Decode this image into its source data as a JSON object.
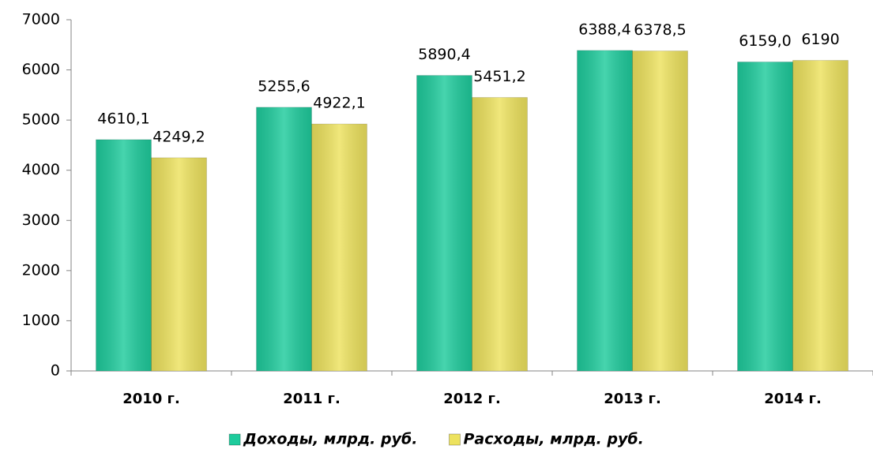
{
  "chart_data": {
    "type": "bar",
    "categories": [
      "2010 г.",
      "2011 г.",
      "2012 г.",
      "2013 г.",
      "2014 г."
    ],
    "series": [
      {
        "name": "Доходы, млрд. руб.",
        "color": "#1ecb9c",
        "values": [
          4610.1,
          5255.6,
          5890.4,
          6388.4,
          6159.0
        ],
        "value_labels": [
          "4610,1",
          "5255,6",
          "5890,4",
          "6388,4",
          "6159,0"
        ]
      },
      {
        "name": "Расходы, млрд. руб.",
        "color": "#ede25e",
        "values": [
          4249.2,
          4922.1,
          5451.2,
          6378.5,
          6190
        ],
        "value_labels": [
          "4249,2",
          "4922,1",
          "5451,2",
          "6378,5",
          "6190"
        ]
      }
    ],
    "ylim": [
      0,
      7000
    ],
    "yticks": [
      0,
      1000,
      2000,
      3000,
      4000,
      5000,
      6000,
      7000
    ],
    "legend": "bottom"
  }
}
